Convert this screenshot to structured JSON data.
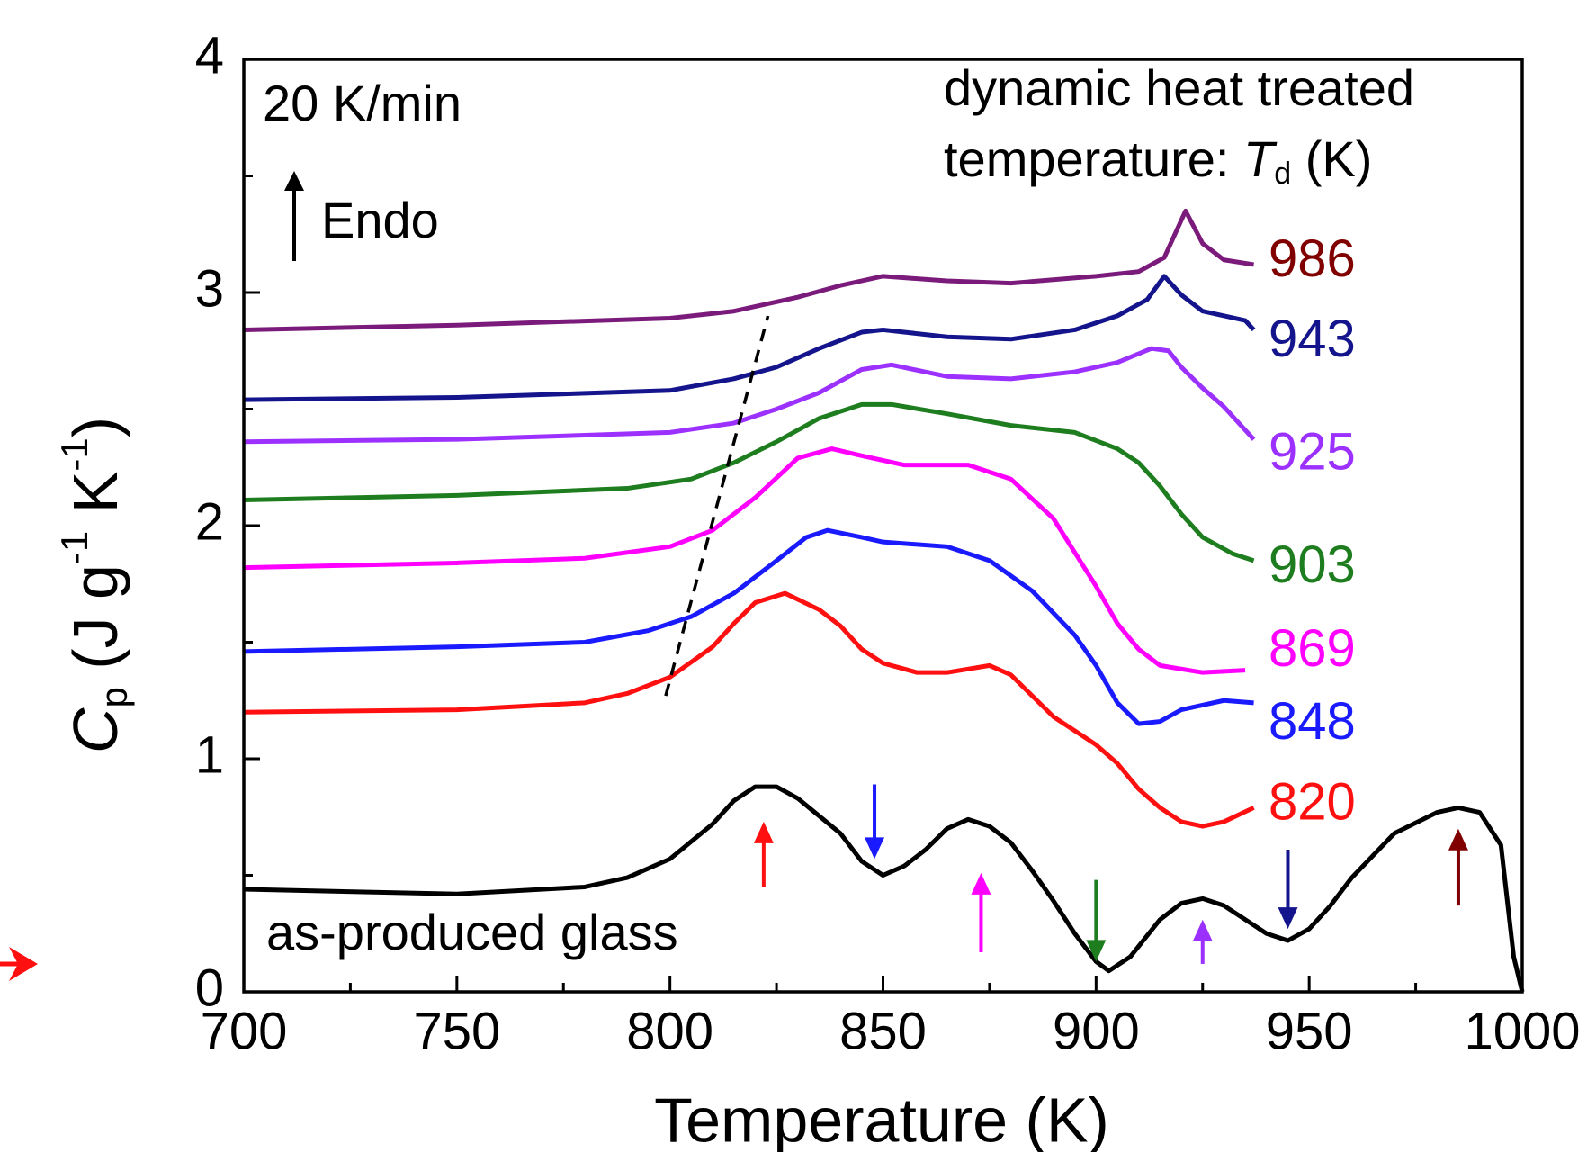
{
  "chart_data": {
    "type": "line",
    "xlabel": "Temperature (K)",
    "ylabel_parts": [
      "C",
      "p",
      " (J g",
      "-1",
      " K",
      "-1",
      ")"
    ],
    "annotations": {
      "rate": "20 K/min",
      "endo": "Endo",
      "legend_title_line1": "dynamic heat treated",
      "legend_title_line2": [
        "temperature: ",
        "T",
        "d",
        " (K)"
      ]
    },
    "xlim": [
      700,
      1000
    ],
    "xticks": [
      700,
      750,
      800,
      850,
      900,
      950,
      1000
    ],
    "xminorticks": [
      725,
      775,
      825,
      875,
      925,
      975
    ],
    "ylim": [
      0,
      4
    ],
    "yticks": [
      0,
      1,
      2,
      3,
      4
    ],
    "yminorticks": [
      0.5,
      1.5,
      2.5,
      3.5
    ],
    "series": [
      {
        "name": "as-produced glass",
        "color": "#000000",
        "x": [
          700,
          750,
          780,
          790,
          800,
          810,
          815,
          820,
          825,
          830,
          840,
          845,
          850,
          855,
          860,
          865,
          870,
          875,
          880,
          885,
          890,
          895,
          900,
          903,
          908,
          915,
          920,
          925,
          930,
          935,
          940,
          945,
          950,
          955,
          960,
          970,
          980,
          985,
          990,
          995,
          998,
          1000
        ],
        "values": [
          0.44,
          0.42,
          0.45,
          0.49,
          0.57,
          0.72,
          0.82,
          0.88,
          0.88,
          0.83,
          0.68,
          0.56,
          0.5,
          0.54,
          0.61,
          0.7,
          0.74,
          0.71,
          0.64,
          0.52,
          0.39,
          0.25,
          0.13,
          0.09,
          0.15,
          0.31,
          0.38,
          0.4,
          0.37,
          0.31,
          0.25,
          0.22,
          0.27,
          0.37,
          0.49,
          0.68,
          0.77,
          0.79,
          0.77,
          0.63,
          0.15,
          0
        ]
      },
      {
        "name": "820",
        "color": "#ff1010",
        "label_color": "#ff1010",
        "x": [
          700,
          750,
          780,
          790,
          800,
          810,
          815,
          820,
          827,
          835,
          840,
          845,
          850,
          858,
          865,
          875,
          880,
          885,
          890,
          900,
          905,
          910,
          915,
          920,
          925,
          930,
          937
        ],
        "values": [
          1.2,
          1.21,
          1.24,
          1.28,
          1.35,
          1.48,
          1.58,
          1.67,
          1.71,
          1.64,
          1.57,
          1.47,
          1.41,
          1.37,
          1.37,
          1.4,
          1.36,
          1.27,
          1.18,
          1.06,
          0.98,
          0.87,
          0.79,
          0.73,
          0.71,
          0.73,
          0.79
        ]
      },
      {
        "name": "848",
        "color": "#1a1aff",
        "label_color": "#1a1aff",
        "x": [
          700,
          750,
          780,
          795,
          805,
          815,
          825,
          832,
          837,
          845,
          850,
          865,
          875,
          885,
          895,
          900,
          905,
          910,
          915,
          920,
          930,
          937
        ],
        "values": [
          1.46,
          1.48,
          1.5,
          1.55,
          1.61,
          1.71,
          1.85,
          1.95,
          1.98,
          1.95,
          1.93,
          1.91,
          1.85,
          1.72,
          1.53,
          1.4,
          1.24,
          1.15,
          1.16,
          1.21,
          1.25,
          1.24
        ]
      },
      {
        "name": "869",
        "color": "#ff00ff",
        "label_color": "#ff00ff",
        "x": [
          700,
          750,
          780,
          800,
          810,
          820,
          830,
          838,
          845,
          855,
          870,
          880,
          890,
          900,
          905,
          910,
          915,
          925,
          935
        ],
        "values": [
          1.82,
          1.84,
          1.86,
          1.91,
          1.98,
          2.12,
          2.29,
          2.33,
          2.3,
          2.26,
          2.26,
          2.2,
          2.03,
          1.74,
          1.58,
          1.47,
          1.4,
          1.37,
          1.38
        ]
      },
      {
        "name": "903",
        "color": "#1e7d1e",
        "label_color": "#1e7d1e",
        "x": [
          700,
          750,
          790,
          805,
          815,
          825,
          835,
          845,
          852,
          865,
          880,
          895,
          905,
          910,
          915,
          920,
          925,
          932,
          937
        ],
        "values": [
          2.11,
          2.13,
          2.16,
          2.2,
          2.27,
          2.36,
          2.46,
          2.52,
          2.52,
          2.48,
          2.43,
          2.4,
          2.33,
          2.27,
          2.17,
          2.05,
          1.95,
          1.88,
          1.85
        ]
      },
      {
        "name": "925",
        "color": "#9b30ff",
        "label_color": "#9b30ff",
        "x": [
          700,
          750,
          800,
          815,
          825,
          835,
          845,
          852,
          865,
          880,
          895,
          905,
          913,
          917,
          920,
          925,
          930,
          937
        ],
        "values": [
          2.36,
          2.37,
          2.4,
          2.44,
          2.5,
          2.57,
          2.67,
          2.69,
          2.64,
          2.63,
          2.66,
          2.7,
          2.76,
          2.75,
          2.68,
          2.59,
          2.51,
          2.37
        ]
      },
      {
        "name": "943",
        "color": "#14148c",
        "label_color": "#14148c",
        "x": [
          700,
          750,
          800,
          815,
          825,
          835,
          845,
          850,
          865,
          880,
          895,
          905,
          912,
          916,
          920,
          925,
          935,
          937
        ],
        "values": [
          2.54,
          2.55,
          2.58,
          2.63,
          2.68,
          2.76,
          2.83,
          2.84,
          2.81,
          2.8,
          2.84,
          2.9,
          2.97,
          3.07,
          2.99,
          2.92,
          2.88,
          2.84
        ]
      },
      {
        "name": "986",
        "color": "#7a1a7a",
        "label_color": "#800000",
        "x": [
          700,
          750,
          800,
          815,
          830,
          840,
          850,
          865,
          880,
          900,
          910,
          916,
          921,
          925,
          930,
          937
        ],
        "values": [
          2.84,
          2.86,
          2.89,
          2.92,
          2.98,
          3.03,
          3.07,
          3.05,
          3.04,
          3.07,
          3.09,
          3.15,
          3.35,
          3.21,
          3.14,
          3.12
        ]
      }
    ],
    "dashed_line": {
      "x": [
        799,
        823
      ],
      "values": [
        1.27,
        2.9
      ]
    },
    "arrows": [
      {
        "x": 822,
        "y_tail": 0.45,
        "y_tip": 0.73,
        "color": "#ff1010"
      },
      {
        "x": 848,
        "y_tail": 0.89,
        "y_tip": 0.57,
        "color": "#1a1aff"
      },
      {
        "x": 873,
        "y_tail": 0.17,
        "y_tip": 0.51,
        "color": "#ff00ff"
      },
      {
        "x": 900,
        "y_tail": 0.48,
        "y_tip": 0.13,
        "color": "#1e7d1e"
      },
      {
        "x": 925,
        "y_tail": 0.12,
        "y_tip": 0.31,
        "color": "#9b30ff"
      },
      {
        "x": 945,
        "y_tail": 0.61,
        "y_tip": 0.27,
        "color": "#14148c"
      },
      {
        "x": 985,
        "y_tail": 0.37,
        "y_tip": 0.7,
        "color": "#800000"
      }
    ]
  }
}
